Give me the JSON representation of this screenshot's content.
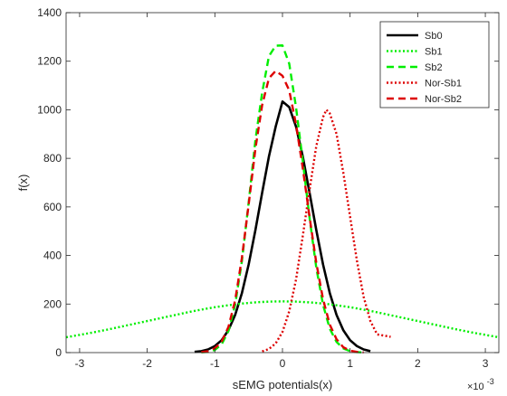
{
  "chart_data": {
    "type": "line",
    "xlabel": "sEMG potentials(x)",
    "ylabel": "f(x)",
    "x_exponent_label": "×10",
    "x_exponent_power": "-3",
    "xlim": [
      -3.2,
      3.2
    ],
    "ylim": [
      0,
      1400
    ],
    "xticks": [
      -3,
      -2,
      -1,
      0,
      1,
      2,
      3
    ],
    "xtick_labels": [
      "-3",
      "-2",
      "-1",
      "0",
      "1",
      "2",
      "3"
    ],
    "yticks": [
      0,
      200,
      400,
      600,
      800,
      1000,
      1200,
      1400
    ],
    "ytick_labels": [
      "0",
      "200",
      "400",
      "600",
      "800",
      "1000",
      "1200",
      "1400"
    ],
    "grid": false,
    "legend_position": "top-right",
    "series": [
      {
        "name": "Sb0",
        "color": "#000000",
        "style": "solid",
        "x": [
          -1.3,
          -1.2,
          -1.1,
          -1.0,
          -0.9,
          -0.8,
          -0.7,
          -0.6,
          -0.5,
          -0.4,
          -0.3,
          -0.2,
          -0.1,
          0.0,
          0.1,
          0.2,
          0.3,
          0.4,
          0.5,
          0.6,
          0.7,
          0.8,
          0.9,
          1.0,
          1.1,
          1.2,
          1.3
        ],
        "y": [
          3,
          6,
          13,
          27,
          51,
          92,
          155,
          245,
          363,
          505,
          659,
          808,
          931,
          1034,
          1011,
          931,
          808,
          659,
          505,
          363,
          245,
          155,
          92,
          51,
          27,
          13,
          6
        ]
      },
      {
        "name": "Sb1",
        "color": "#00ee00",
        "style": "dotted",
        "x": [
          -3.2,
          -3.0,
          -2.8,
          -2.6,
          -2.4,
          -2.2,
          -2.0,
          -1.8,
          -1.6,
          -1.4,
          -1.2,
          -1.0,
          -0.8,
          -0.6,
          -0.4,
          -0.2,
          0.0,
          0.2,
          0.4,
          0.6,
          0.8,
          1.0,
          1.2,
          1.4,
          1.6,
          1.8,
          2.0,
          2.2,
          2.4,
          2.6,
          2.8,
          3.0,
          3.2
        ],
        "y": [
          63,
          73,
          83,
          94,
          106,
          118,
          130,
          142,
          154,
          166,
          177,
          187,
          195,
          202,
          207,
          210,
          211,
          210,
          207,
          202,
          195,
          187,
          177,
          166,
          154,
          142,
          130,
          118,
          106,
          94,
          83,
          73,
          63
        ]
      },
      {
        "name": "Sb2",
        "color": "#00ee00",
        "style": "dashed",
        "x": [
          -1.2,
          -1.1,
          -1.0,
          -0.9,
          -0.8,
          -0.7,
          -0.6,
          -0.5,
          -0.4,
          -0.3,
          -0.2,
          -0.1,
          0.0,
          0.1,
          0.2,
          0.3,
          0.4,
          0.5,
          0.6,
          0.7,
          0.8,
          0.9,
          1.0,
          1.1,
          1.2
        ],
        "y": [
          1,
          3,
          11,
          34,
          88,
          197,
          377,
          618,
          876,
          1071,
          1221,
          1264,
          1265,
          1190,
          1011,
          790,
          556,
          350,
          197,
          98,
          44,
          17,
          6,
          2,
          1
        ]
      },
      {
        "name": "Nor-Sb1",
        "color": "#dd0000",
        "style": "dotted",
        "x": [
          -0.3,
          -0.2,
          -0.1,
          0.0,
          0.1,
          0.2,
          0.3,
          0.4,
          0.5,
          0.6,
          0.65,
          0.7,
          0.8,
          0.9,
          1.0,
          1.1,
          1.2,
          1.3,
          1.4,
          1.5,
          1.6
        ],
        "y": [
          5,
          15,
          38,
          85,
          170,
          300,
          480,
          670,
          850,
          970,
          1000,
          985,
          900,
          740,
          560,
          380,
          230,
          130,
          75,
          70,
          65
        ]
      },
      {
        "name": "Nor-Sb2",
        "color": "#dd0000",
        "style": "dashed",
        "x": [
          -1.2,
          -1.1,
          -1.0,
          -0.9,
          -0.8,
          -0.7,
          -0.6,
          -0.5,
          -0.4,
          -0.3,
          -0.2,
          -0.1,
          0.0,
          0.1,
          0.2,
          0.3,
          0.4,
          0.5,
          0.6,
          0.7,
          0.8,
          0.9,
          1.0,
          1.1,
          1.2
        ],
        "y": [
          2,
          6,
          18,
          45,
          105,
          215,
          390,
          610,
          840,
          1020,
          1130,
          1160,
          1140,
          1080,
          940,
          760,
          560,
          370,
          220,
          115,
          55,
          22,
          8,
          3,
          1
        ]
      }
    ]
  }
}
